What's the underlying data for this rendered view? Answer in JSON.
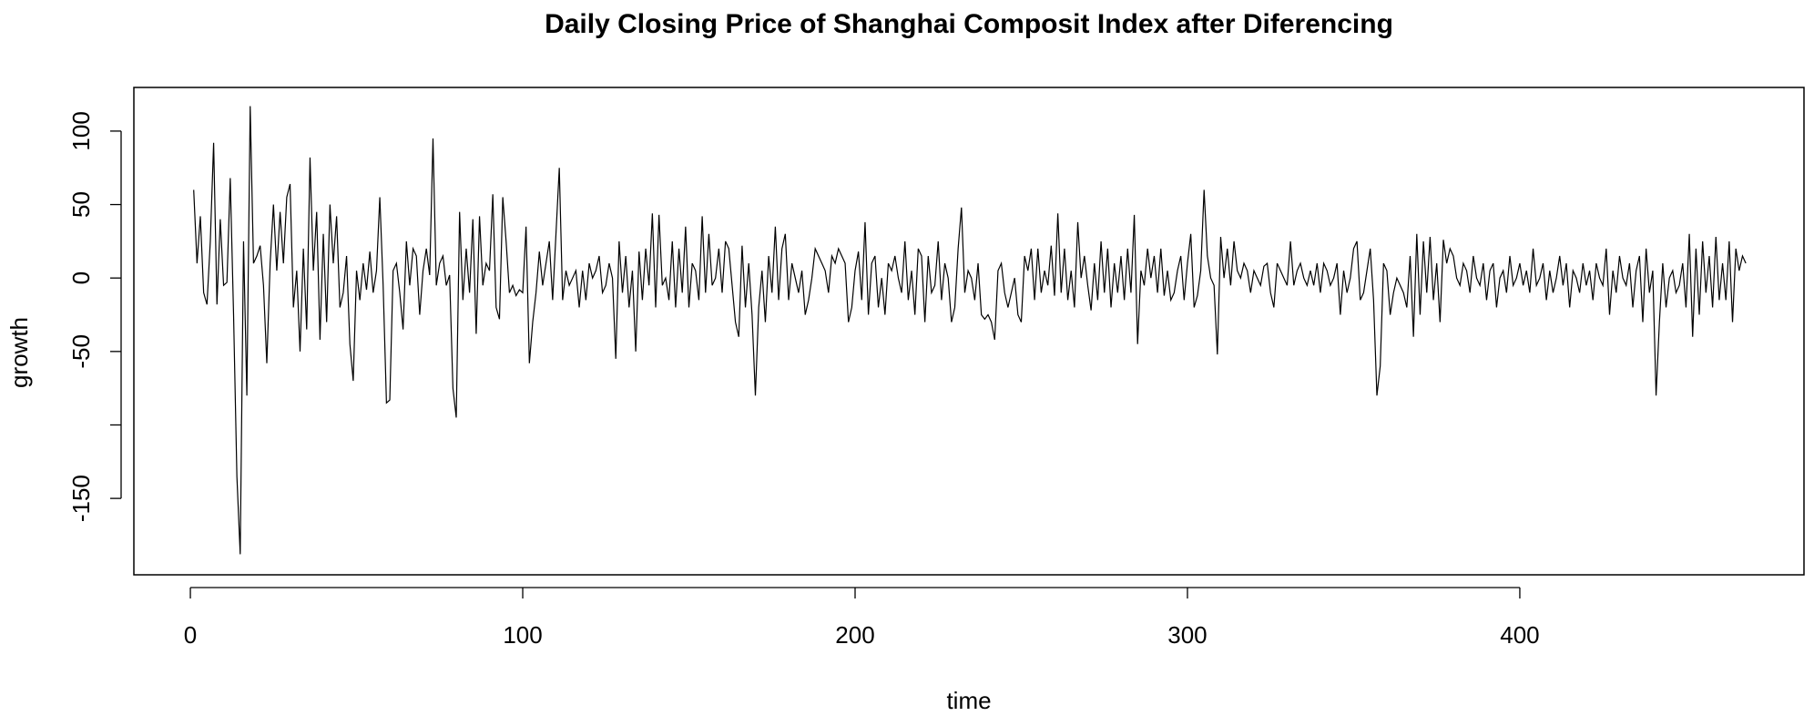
{
  "chart_data": {
    "type": "line",
    "title": "Daily Closing Price of Shanghai Composit Index after Diferencing",
    "xlabel": "time",
    "ylabel": "growth",
    "xlim": [
      -17,
      485.5
    ],
    "ylim": [
      -202,
      129.7
    ],
    "xticks": [
      0,
      100,
      200,
      300,
      400
    ],
    "xtick_labels": [
      "0",
      "100",
      "200",
      "300",
      "400"
    ],
    "yticks": [
      100,
      50,
      0,
      -50,
      -100,
      -150
    ],
    "ytick_labels": [
      "100",
      "50",
      "0",
      "-50",
      "",
      "-150"
    ],
    "grid": false,
    "series": [
      {
        "name": "growth",
        "x_start": 1,
        "values": [
          60,
          10,
          42,
          -10,
          -18,
          25,
          92,
          -18,
          40,
          -5,
          -3,
          68,
          -25,
          -135,
          -188,
          25,
          -80,
          117,
          10,
          15,
          22,
          -5,
          -58,
          10,
          50,
          5,
          45,
          10,
          55,
          64,
          -20,
          5,
          -50,
          20,
          -35,
          82,
          5,
          45,
          -42,
          30,
          -30,
          50,
          10,
          42,
          -20,
          -10,
          15,
          -45,
          -70,
          5,
          -15,
          10,
          -8,
          18,
          -10,
          5,
          55,
          -5,
          -85,
          -83,
          5,
          10,
          -10,
          -35,
          25,
          -5,
          20,
          15,
          -25,
          5,
          20,
          2,
          95,
          -5,
          10,
          15,
          -5,
          2,
          -75,
          -95,
          45,
          -15,
          20,
          -10,
          40,
          -38,
          42,
          -5,
          10,
          5,
          57,
          -20,
          -28,
          55,
          25,
          -10,
          -5,
          -12,
          -8,
          -10,
          35,
          -58,
          -30,
          -10,
          18,
          -5,
          10,
          25,
          -15,
          30,
          75,
          -15,
          5,
          -5,
          0,
          5,
          -20,
          5,
          -15,
          10,
          0,
          5,
          15,
          -10,
          -5,
          10,
          0,
          -55,
          25,
          -10,
          15,
          -20,
          5,
          -50,
          18,
          -15,
          20,
          -5,
          44,
          -20,
          43,
          -5,
          0,
          -15,
          25,
          -20,
          20,
          -10,
          35,
          -20,
          10,
          5,
          -15,
          42,
          -10,
          30,
          -5,
          0,
          20,
          -10,
          25,
          20,
          -5,
          -30,
          -40,
          22,
          -20,
          10,
          -25,
          -80,
          -20,
          5,
          -30,
          15,
          -10,
          35,
          -15,
          20,
          30,
          -15,
          10,
          0,
          -10,
          5,
          -25,
          -15,
          0,
          20,
          15,
          10,
          5,
          -10,
          15,
          10,
          20,
          15,
          10,
          -30,
          -20,
          5,
          18,
          -15,
          38,
          -25,
          10,
          15,
          -20,
          0,
          -25,
          10,
          5,
          15,
          0,
          -10,
          25,
          -15,
          5,
          -25,
          20,
          15,
          -30,
          15,
          -10,
          -5,
          25,
          -15,
          10,
          0,
          -30,
          -20,
          20,
          48,
          -10,
          5,
          0,
          -15,
          10,
          -25,
          -28,
          -25,
          -30,
          -42,
          5,
          10,
          -10,
          -20,
          -10,
          0,
          -25,
          -30,
          15,
          5,
          20,
          -15,
          20,
          -10,
          5,
          -5,
          22,
          -12,
          44,
          -10,
          20,
          -15,
          5,
          -20,
          38,
          0,
          15,
          -5,
          -22,
          10,
          -15,
          25,
          -10,
          20,
          -20,
          10,
          -10,
          15,
          -15,
          20,
          -10,
          43,
          -45,
          5,
          -5,
          20,
          0,
          15,
          -10,
          20,
          -12,
          5,
          -15,
          -10,
          5,
          15,
          -15,
          10,
          30,
          -20,
          -12,
          5,
          60,
          15,
          0,
          -5,
          -52,
          28,
          0,
          20,
          -5,
          25,
          5,
          0,
          10,
          5,
          -10,
          5,
          0,
          -5,
          8,
          10,
          -10,
          -20,
          10,
          5,
          0,
          -5,
          25,
          -5,
          5,
          10,
          0,
          -5,
          5,
          -5,
          10,
          -10,
          10,
          5,
          -5,
          0,
          10,
          -25,
          5,
          -10,
          0,
          20,
          25,
          -15,
          -10,
          5,
          20,
          -15,
          -80,
          -60,
          10,
          5,
          -25,
          -10,
          0,
          -5,
          -10,
          -20,
          15,
          -40,
          30,
          -25,
          25,
          -10,
          28,
          -15,
          10,
          -30,
          26,
          10,
          20,
          15,
          0,
          -5,
          10,
          5,
          -10,
          15,
          0,
          -5,
          10,
          -15,
          5,
          10,
          -20,
          0,
          5,
          -10,
          15,
          -5,
          0,
          10,
          -5,
          5,
          -10,
          20,
          -5,
          0,
          10,
          -15,
          5,
          -10,
          0,
          15,
          -5,
          10,
          -20,
          5,
          0,
          -10,
          10,
          -5,
          5,
          -15,
          10,
          0,
          -5,
          20,
          -25,
          5,
          -10,
          15,
          0,
          -5,
          10,
          -20,
          5,
          15,
          -30,
          20,
          -10,
          5,
          -80,
          -30,
          10,
          -20,
          0,
          5,
          -10,
          -5,
          10,
          -20,
          30,
          -40,
          20,
          -25,
          25,
          -10,
          15,
          -20,
          28,
          -15,
          10,
          -15,
          25,
          -30,
          20,
          5,
          15,
          10
        ]
      }
    ]
  }
}
